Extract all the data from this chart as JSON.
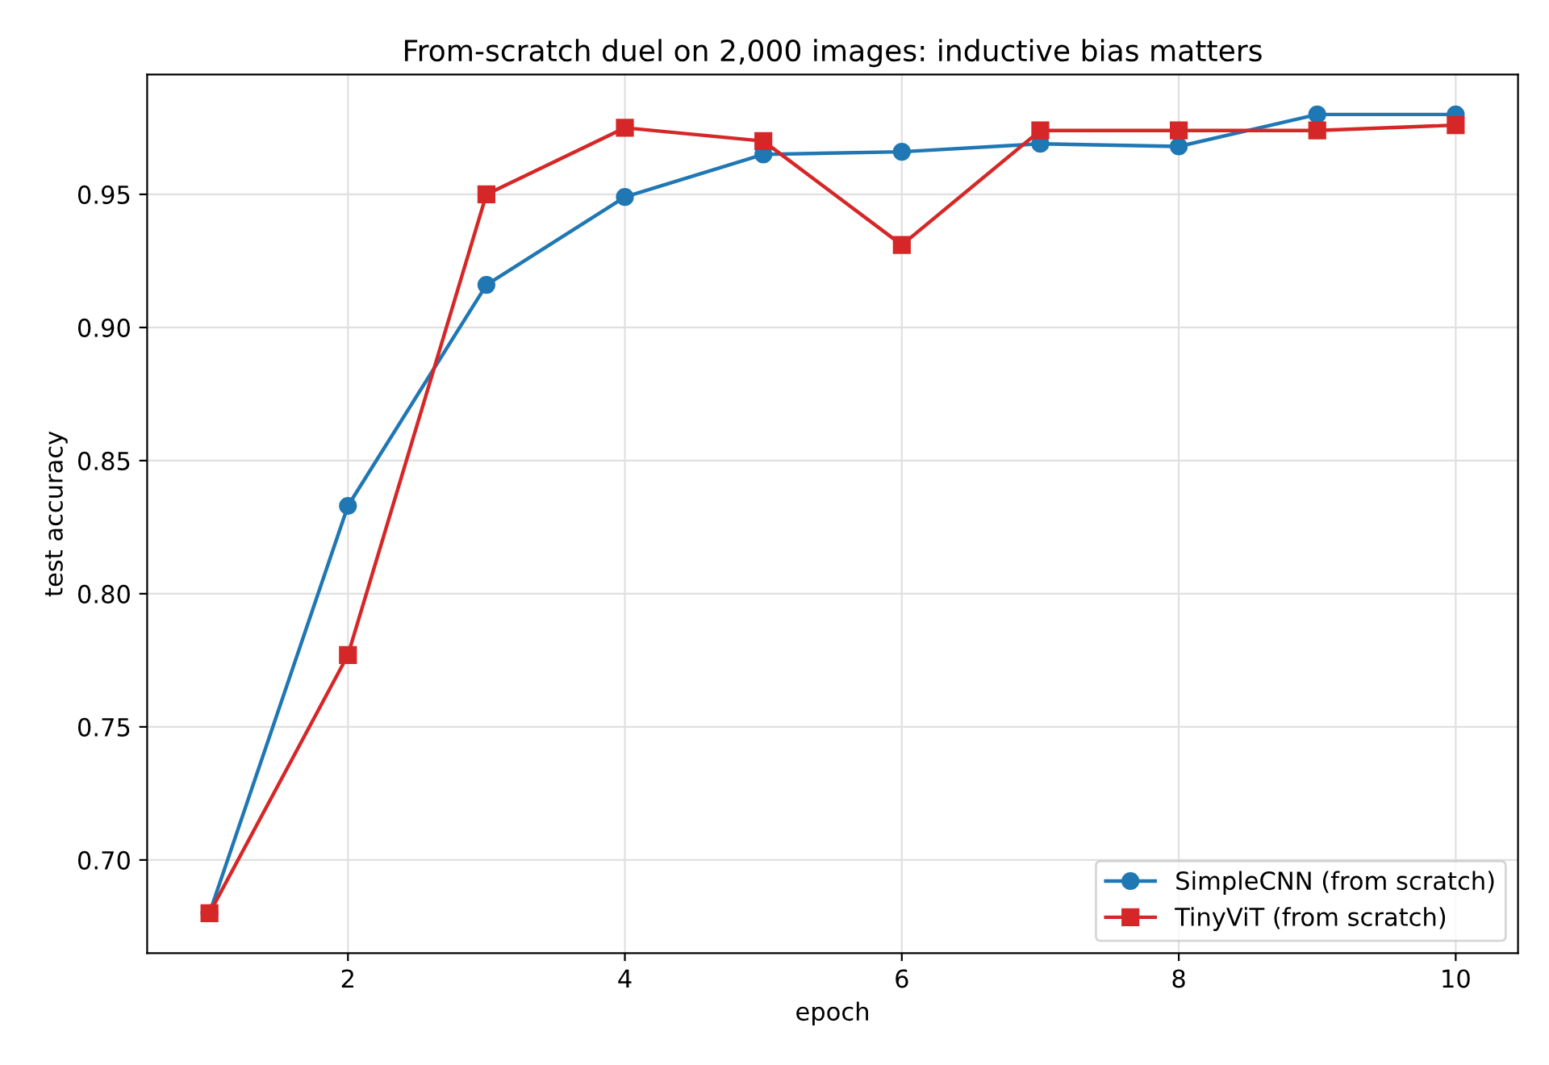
{
  "chart_data": {
    "type": "line",
    "title": "From-scratch duel on 2,000 images: inductive bias matters",
    "xlabel": "epoch",
    "ylabel": "test accuracy",
    "x": [
      1,
      2,
      3,
      4,
      5,
      6,
      7,
      8,
      9,
      10
    ],
    "series": [
      {
        "name": "SimpleCNN (from scratch)",
        "color": "#1f77b4",
        "marker": "circle",
        "values": [
          0.68,
          0.833,
          0.916,
          0.949,
          0.965,
          0.966,
          0.969,
          0.968,
          0.98,
          0.98
        ]
      },
      {
        "name": "TinyViT (from scratch)",
        "color": "#d62728",
        "marker": "square",
        "values": [
          0.68,
          0.777,
          0.95,
          0.975,
          0.97,
          0.931,
          0.974,
          0.974,
          0.974,
          0.976
        ]
      }
    ],
    "xlim": [
      0.55,
      10.45
    ],
    "ylim": [
      0.665,
      0.995
    ],
    "xticks": [
      2,
      4,
      6,
      8,
      10
    ],
    "yticks": [
      {
        "value": 0.7,
        "label": "0.70"
      },
      {
        "value": 0.75,
        "label": "0.75"
      },
      {
        "value": 0.8,
        "label": "0.80"
      },
      {
        "value": 0.85,
        "label": "0.85"
      },
      {
        "value": 0.9,
        "label": "0.90"
      },
      {
        "value": 0.95,
        "label": "0.95"
      }
    ],
    "grid": true,
    "legend": "bottom right",
    "line_style": "solid"
  }
}
